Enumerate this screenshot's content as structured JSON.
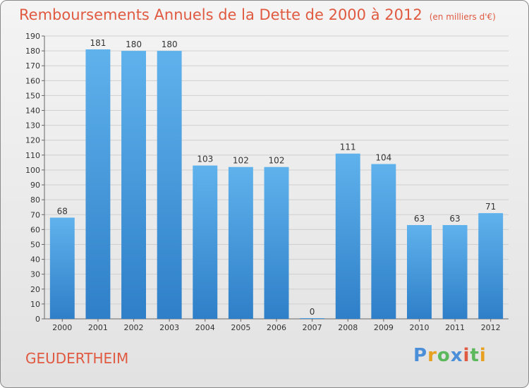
{
  "chart_data": {
    "type": "bar",
    "title": "Remboursements Annuels de la Dette de 2000 à 2012",
    "subtitle": "(en milliers d'€)",
    "categories": [
      "2000",
      "2001",
      "2002",
      "2003",
      "2004",
      "2005",
      "2006",
      "2007",
      "2008",
      "2009",
      "2010",
      "2011",
      "2012"
    ],
    "values": [
      68,
      181,
      180,
      180,
      103,
      102,
      102,
      0,
      111,
      104,
      63,
      63,
      71
    ],
    "ylim": [
      0,
      190
    ],
    "ytick_step": 10,
    "grid": true,
    "bar_color": "#4a9fe0"
  },
  "footer": {
    "commune": "GEUDERTHEIM",
    "logo_letters": [
      {
        "char": "P",
        "color": "#4a8fd8"
      },
      {
        "char": "r",
        "color": "#e8a020"
      },
      {
        "char": "o",
        "color": "#5cb85c"
      },
      {
        "char": "x",
        "color": "#4a8fd8"
      },
      {
        "char": "i",
        "color": "#e05a41"
      },
      {
        "char": "t",
        "color": "#5cb85c"
      },
      {
        "char": "i",
        "color": "#e8a020"
      }
    ]
  }
}
